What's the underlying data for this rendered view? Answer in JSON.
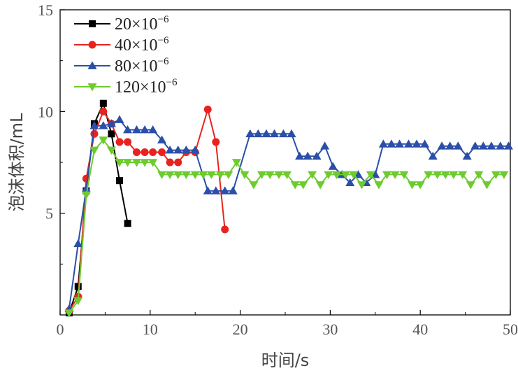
{
  "chart_data": {
    "type": "line",
    "xlabel": "时间/s",
    "ylabel": "泡沫体积/mL",
    "xlim": [
      0,
      50
    ],
    "ylim": [
      0,
      15
    ],
    "xticks": [
      0,
      10,
      20,
      30,
      40,
      50
    ],
    "yticks": [
      5,
      10,
      15
    ],
    "grid": false,
    "legend_position": "top-left",
    "series": [
      {
        "name": "20×10⁻⁶",
        "legend_base": "20×10",
        "legend_exp": "−6",
        "color": "#000000",
        "marker": "square",
        "x": [
          1.0,
          2.0,
          2.9,
          3.8,
          4.8,
          5.7,
          6.6,
          7.5
        ],
        "y": [
          0.1,
          1.4,
          6.1,
          9.4,
          10.4,
          8.9,
          6.6,
          4.5
        ]
      },
      {
        "name": "40×10⁻⁶",
        "legend_base": "40×10",
        "legend_exp": "−6",
        "color": "#e8231f",
        "marker": "circle",
        "x": [
          1.0,
          2.0,
          2.9,
          3.8,
          4.8,
          5.7,
          6.6,
          7.5,
          8.5,
          9.4,
          10.3,
          11.3,
          12.2,
          13.1,
          14.0,
          15.0,
          16.4,
          17.3,
          18.3
        ],
        "y": [
          0.2,
          0.9,
          6.7,
          8.9,
          10.0,
          9.4,
          8.5,
          8.5,
          8.0,
          8.0,
          8.0,
          8.0,
          7.5,
          7.5,
          8.0,
          8.0,
          10.1,
          8.5,
          4.2
        ]
      },
      {
        "name": "80×10⁻⁶",
        "legend_base": "80×10",
        "legend_exp": "−6",
        "color": "#2b4fa8",
        "marker": "triangle-up",
        "x": [
          1.0,
          2.0,
          2.9,
          3.8,
          4.8,
          5.7,
          6.6,
          7.5,
          8.5,
          9.4,
          10.3,
          11.3,
          12.2,
          13.1,
          14.0,
          15.0,
          16.4,
          17.3,
          18.3,
          19.2,
          21.1,
          22.0,
          22.9,
          23.8,
          24.8,
          25.7,
          26.6,
          27.5,
          28.5,
          29.4,
          30.3,
          31.3,
          32.2,
          33.1,
          34.0,
          35.0,
          35.9,
          36.8,
          37.7,
          38.7,
          39.6,
          40.5,
          41.4,
          42.4,
          43.3,
          44.2,
          45.2,
          46.1,
          47.0,
          47.9,
          48.9,
          49.8
        ],
        "y": [
          0.3,
          3.5,
          6.2,
          9.3,
          9.3,
          9.4,
          9.6,
          9.1,
          9.1,
          9.1,
          9.1,
          8.6,
          8.1,
          8.1,
          8.1,
          8.1,
          6.1,
          6.1,
          6.1,
          6.1,
          8.9,
          8.9,
          8.9,
          8.9,
          8.9,
          8.9,
          7.8,
          7.8,
          7.8,
          8.3,
          7.3,
          6.9,
          6.5,
          6.9,
          6.5,
          6.9,
          8.4,
          8.4,
          8.4,
          8.4,
          8.4,
          8.4,
          7.8,
          8.3,
          8.3,
          8.3,
          7.8,
          8.3,
          8.3,
          8.3,
          8.3,
          8.3
        ]
      },
      {
        "name": "120×10⁻⁶",
        "legend_base": "120×10",
        "legend_exp": "−6",
        "color": "#6ecb2f",
        "marker": "triangle-down",
        "x": [
          1.0,
          2.0,
          2.9,
          3.8,
          4.8,
          5.7,
          6.6,
          7.5,
          8.5,
          9.4,
          10.3,
          11.3,
          12.2,
          13.1,
          14.0,
          15.0,
          15.9,
          16.8,
          17.8,
          18.7,
          19.6,
          20.5,
          21.5,
          22.4,
          23.3,
          24.3,
          25.2,
          26.1,
          27.0,
          28.0,
          28.9,
          29.8,
          30.7,
          31.7,
          32.6,
          33.5,
          34.5,
          35.4,
          36.3,
          37.2,
          38.2,
          39.1,
          40.0,
          40.9,
          41.9,
          42.8,
          43.7,
          44.7,
          45.6,
          46.5,
          47.4,
          48.4,
          49.3
        ],
        "y": [
          0.1,
          0.7,
          5.9,
          8.1,
          8.6,
          8.1,
          7.5,
          7.5,
          7.5,
          7.5,
          7.5,
          6.9,
          6.9,
          6.9,
          6.9,
          6.9,
          6.9,
          6.9,
          6.9,
          6.9,
          7.5,
          6.9,
          6.4,
          6.9,
          6.9,
          6.9,
          6.9,
          6.4,
          6.4,
          6.9,
          6.4,
          6.9,
          6.9,
          6.9,
          6.9,
          6.4,
          6.9,
          6.4,
          6.9,
          6.9,
          6.9,
          6.4,
          6.4,
          6.9,
          6.9,
          6.9,
          6.9,
          6.9,
          6.4,
          6.9,
          6.4,
          6.9,
          6.9
        ]
      }
    ]
  }
}
